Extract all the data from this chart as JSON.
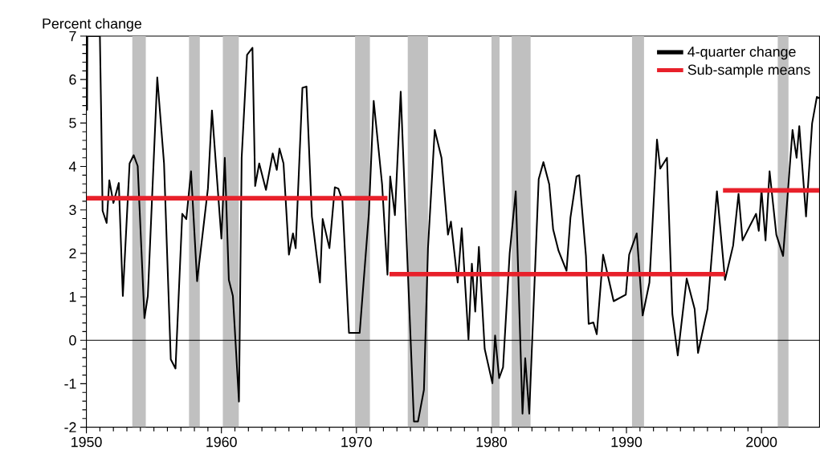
{
  "chart_data": {
    "type": "line",
    "ylabel": "Percent change",
    "xlim": [
      1950,
      2004.3
    ],
    "ylim": [
      -2,
      7
    ],
    "xticks": [
      1950,
      1960,
      1970,
      1980,
      1990,
      2000
    ],
    "yticks": [
      -2,
      -1,
      0,
      1,
      2,
      3,
      4,
      5,
      6,
      7
    ],
    "legend": "top right",
    "ref_lines": [
      {
        "axis": "y",
        "value": 0,
        "color": "#000000"
      }
    ],
    "bands": [
      {
        "axis": "x",
        "from": 1953.4,
        "to": 1954.4,
        "color": "#c0c0c0"
      },
      {
        "axis": "x",
        "from": 1957.6,
        "to": 1958.4,
        "color": "#c0c0c0"
      },
      {
        "axis": "x",
        "from": 1960.1,
        "to": 1961.3,
        "color": "#c0c0c0"
      },
      {
        "axis": "x",
        "from": 1969.9,
        "to": 1971.0,
        "color": "#c0c0c0"
      },
      {
        "axis": "x",
        "from": 1973.8,
        "to": 1975.3,
        "color": "#c0c0c0"
      },
      {
        "axis": "x",
        "from": 1980.0,
        "to": 1980.6,
        "color": "#c0c0c0"
      },
      {
        "axis": "x",
        "from": 1981.5,
        "to": 1982.9,
        "color": "#c0c0c0"
      },
      {
        "axis": "x",
        "from": 1990.4,
        "to": 1991.3,
        "color": "#c0c0c0"
      },
      {
        "axis": "x",
        "from": 2001.2,
        "to": 2002.0,
        "color": "#c0c0c0"
      }
    ],
    "series": [
      {
        "name": "4-quarter change",
        "color": "#000000",
        "x": [
          1950.05,
          1950.07,
          1951.0,
          1951.1,
          1951.2,
          1951.5,
          1951.7,
          1952.0,
          1952.4,
          1952.7,
          1953.2,
          1953.5,
          1953.8,
          1954.3,
          1954.55,
          1955.25,
          1955.75,
          1956.25,
          1956.6,
          1957.1,
          1957.4,
          1957.75,
          1958.2,
          1959.0,
          1959.3,
          1960.0,
          1960.25,
          1960.55,
          1960.85,
          1961.3,
          1961.5,
          1961.9,
          1962.3,
          1962.5,
          1962.8,
          1963.3,
          1963.8,
          1964.1,
          1964.3,
          1964.6,
          1965.0,
          1965.3,
          1965.5,
          1966.0,
          1966.3,
          1966.7,
          1967.3,
          1967.5,
          1968.0,
          1968.4,
          1968.66,
          1968.96,
          1969.45,
          1970.24,
          1970.92,
          1971.28,
          1971.9,
          1972.3,
          1972.5,
          1972.85,
          1973.28,
          1973.77,
          1974.26,
          1974.56,
          1975.0,
          1975.3,
          1975.8,
          1976.3,
          1976.78,
          1977.0,
          1977.5,
          1977.8,
          1978.3,
          1978.55,
          1978.8,
          1979.07,
          1979.5,
          1980.07,
          1980.27,
          1980.57,
          1980.86,
          1981.35,
          1981.8,
          1982.3,
          1982.5,
          1982.8,
          1983.5,
          1983.85,
          1984.28,
          1984.57,
          1984.97,
          1985.56,
          1985.85,
          1986.3,
          1986.5,
          1987.0,
          1987.2,
          1987.55,
          1987.8,
          1988.27,
          1989.05,
          1989.95,
          1990.2,
          1990.76,
          1991.2,
          1991.7,
          1992.26,
          1992.5,
          1993.0,
          1993.4,
          1993.8,
          1994.46,
          1995.05,
          1995.3,
          1996.0,
          1996.7,
          1997.3,
          1997.9,
          1998.3,
          1998.6,
          1999.1,
          1999.6,
          1999.8,
          2000.0,
          2000.3,
          2000.6,
          2001.1,
          2001.6,
          2002.3,
          2002.6,
          2002.8,
          2003.3,
          2003.75,
          2004.1,
          2004.3
        ],
        "values": [
          5.29,
          7,
          7,
          5.1,
          2.98,
          2.7,
          3.68,
          3.16,
          3.62,
          1.02,
          4.07,
          4.26,
          4.01,
          0.51,
          1.02,
          6.05,
          4.07,
          -0.44,
          -0.65,
          2.91,
          2.79,
          3.89,
          1.36,
          3.49,
          5.29,
          2.34,
          4.2,
          1.39,
          1.02,
          -1.41,
          4.2,
          6.57,
          6.73,
          3.55,
          4.07,
          3.46,
          4.3,
          3.92,
          4.41,
          4.07,
          1.97,
          2.46,
          2.12,
          5.81,
          5.84,
          2.85,
          1.33,
          2.79,
          2.12,
          3.52,
          3.49,
          3.22,
          0.17,
          0.17,
          2.91,
          5.51,
          3.59,
          1.51,
          3.77,
          2.88,
          5.72,
          1.88,
          -1.87,
          -1.87,
          -1.14,
          2.12,
          4.84,
          4.2,
          2.43,
          2.73,
          1.33,
          2.58,
          0.02,
          1.76,
          0.66,
          2.15,
          -0.2,
          -0.99,
          0.11,
          -0.87,
          -0.62,
          2.0,
          3.43,
          -1.69,
          -0.41,
          -1.69,
          3.71,
          4.1,
          3.59,
          2.55,
          2.06,
          1.6,
          2.82,
          3.77,
          3.8,
          1.94,
          0.38,
          0.41,
          0.14,
          1.97,
          0.9,
          1.05,
          1.97,
          2.46,
          0.57,
          1.33,
          4.62,
          3.95,
          4.2,
          0.6,
          -0.35,
          1.42,
          0.72,
          -0.29,
          0.72,
          3.43,
          1.39,
          2.18,
          3.37,
          2.3,
          2.61,
          2.91,
          2.52,
          3.46,
          2.3,
          3.89,
          2.43,
          1.94,
          4.84,
          4.2,
          4.93,
          2.85,
          4.99,
          5.6,
          5.57
        ]
      },
      {
        "name": "Sub-sample means",
        "color": "#e8202a",
        "x": [
          1950,
          1972.3,
          1972.35,
          1972.45,
          1997.3,
          1997.25,
          1997.15,
          2004.3
        ],
        "values": [
          3.27,
          3.27,
          null,
          1.52,
          1.52,
          null,
          3.45,
          3.45
        ]
      }
    ]
  }
}
